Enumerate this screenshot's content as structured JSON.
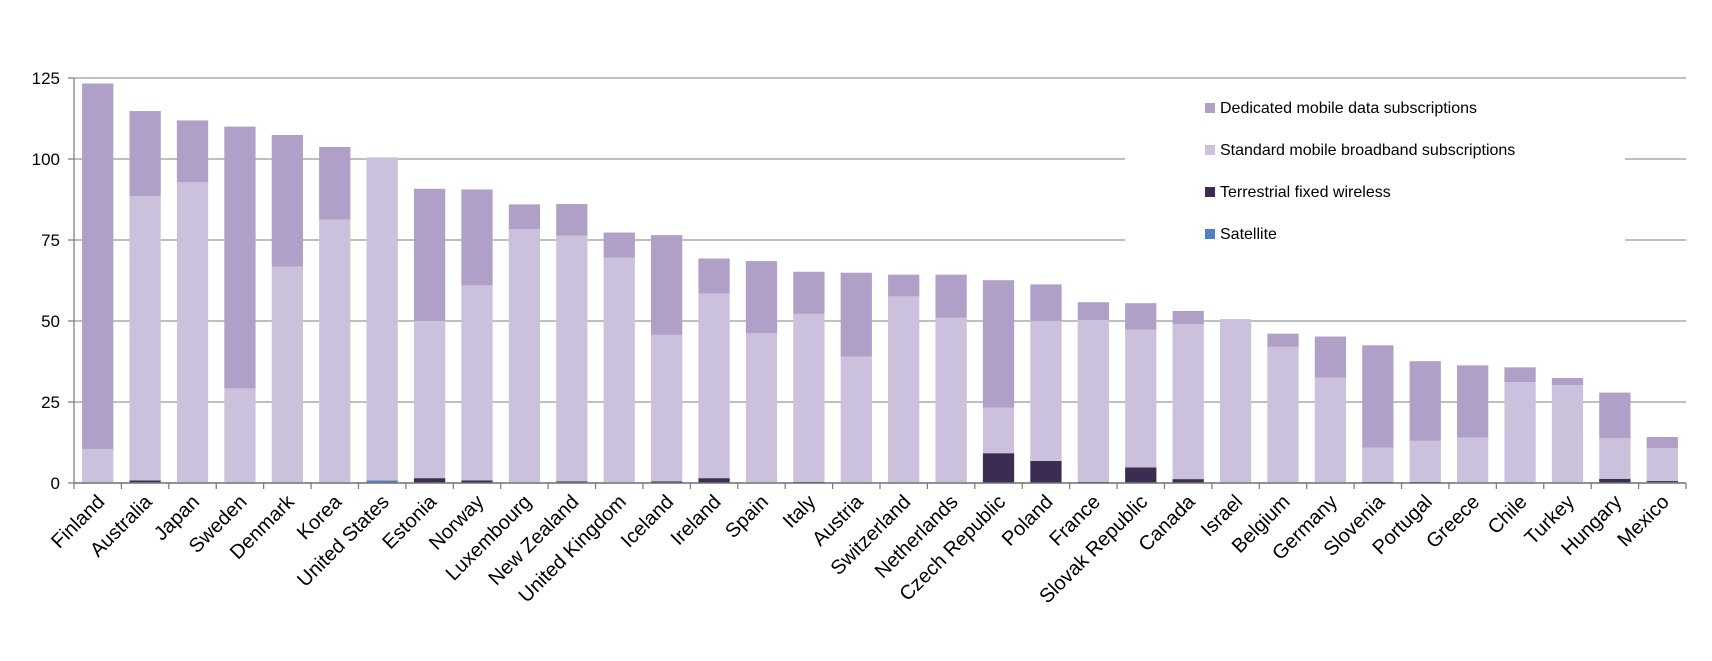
{
  "chart_data": {
    "type": "bar",
    "stacked": true,
    "categories": [
      "Finland",
      "Australia",
      "Japan",
      "Sweden",
      "Denmark",
      "Korea",
      "United States",
      "Estonia",
      "Norway",
      "Luxembourg",
      "New Zealand",
      "United Kingdom",
      "Iceland",
      "Ireland",
      "Spain",
      "Italy",
      "Austria",
      "Switzerland",
      "Netherlands",
      "Czech Republic",
      "Poland",
      "France",
      "Slovak Republic",
      "Canada",
      "Israel",
      "Belgium",
      "Germany",
      "Slovenia",
      "Portugal",
      "Greece",
      "Chile",
      "Turkey",
      "Hungary",
      "Mexico"
    ],
    "series": [
      {
        "name": "Satellite",
        "color": "#4f81bd",
        "values": [
          0,
          0.3,
          0,
          0,
          0,
          0,
          0.8,
          0,
          0.1,
          0,
          0.2,
          0,
          0,
          0,
          0,
          0,
          0,
          0,
          0,
          0,
          0,
          0,
          0,
          0,
          0,
          0,
          0,
          0,
          0,
          0,
          0,
          0,
          0,
          0.3
        ]
      },
      {
        "name": "Terrestrial fixed wireless",
        "color": "#3d2c52",
        "values": [
          0,
          0.5,
          0,
          0,
          0,
          0,
          0,
          1.5,
          0.7,
          0,
          0.3,
          0,
          0.5,
          1.5,
          0,
          0.3,
          0,
          0,
          0,
          9.2,
          6.8,
          0.3,
          4.8,
          1.2,
          0,
          0,
          0,
          0.3,
          0.3,
          0,
          0,
          0,
          1.3,
          0.3
        ]
      },
      {
        "name": "Standard mobile broadband subscriptions",
        "color": "#ccc1dc",
        "values": [
          10.5,
          87.7,
          92.8,
          29.2,
          66.8,
          81.3,
          99.7,
          48.5,
          60.2,
          78.4,
          75.8,
          69.6,
          45.2,
          57.0,
          46.2,
          51.9,
          39.0,
          57.6,
          51.0,
          14.1,
          43.3,
          50.0,
          42.5,
          47.8,
          50.6,
          42.0,
          32.5,
          10.6,
          12.7,
          14.0,
          31.1,
          30.2,
          12.5,
          10.2
        ]
      },
      {
        "name": "Dedicated mobile data subscriptions",
        "color": "#b0a0c8",
        "values": [
          112.8,
          26.3,
          19.1,
          80.8,
          40.6,
          22.4,
          0,
          40.8,
          29.6,
          7.6,
          9.8,
          7.7,
          30.8,
          10.8,
          22.3,
          13.0,
          25.9,
          6.7,
          13.3,
          39.3,
          11.2,
          5.5,
          8.2,
          4.1,
          0,
          4.1,
          12.7,
          31.6,
          24.6,
          22.3,
          4.6,
          2.2,
          14.1,
          3.4
        ]
      }
    ],
    "y_ticks": [
      "0",
      "25",
      "50",
      "75",
      "100",
      "125"
    ],
    "ylim": [
      0,
      125
    ],
    "grid": true,
    "legend_order": [
      "Dedicated mobile data subscriptions",
      "Standard mobile broadband subscriptions",
      "Terrestrial fixed wireless",
      "Satellite"
    ],
    "legend_placement": "top-right"
  }
}
